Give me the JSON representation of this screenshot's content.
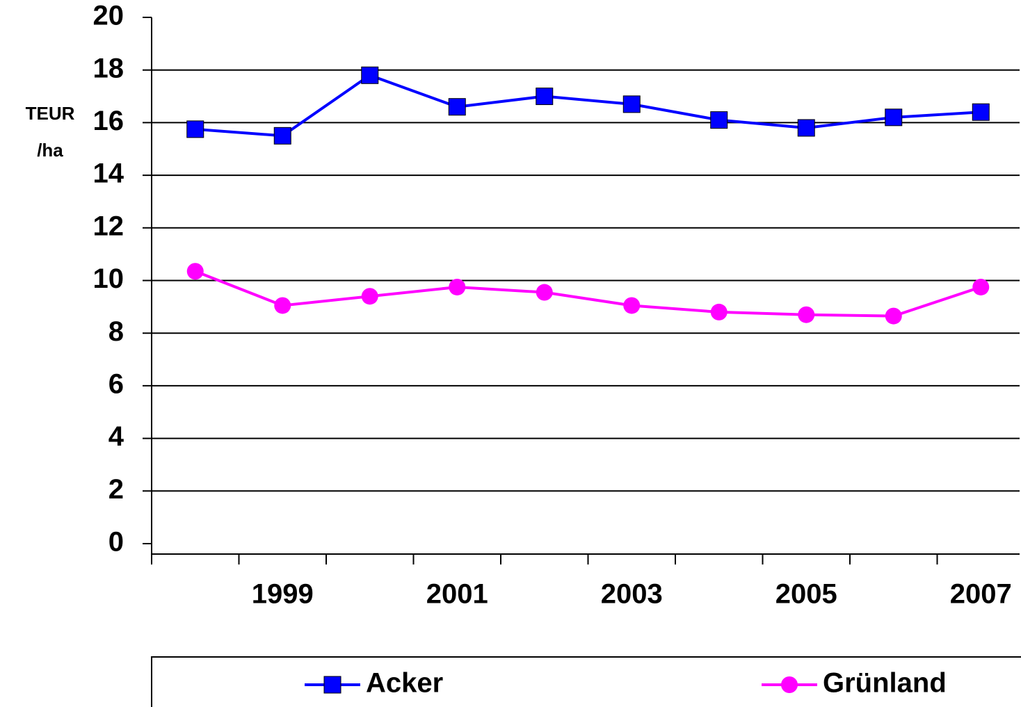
{
  "chart_data": {
    "type": "line",
    "y_label": [
      "TEUR",
      "/ha"
    ],
    "categories": [
      null,
      "1999",
      null,
      "2001",
      null,
      "2003",
      null,
      "2005",
      null,
      "2007"
    ],
    "series": [
      {
        "name": "Acker",
        "color": "#0000ff",
        "marker": "square",
        "values": [
          15.75,
          15.5,
          17.8,
          16.6,
          17.0,
          16.7,
          16.1,
          15.8,
          16.2,
          16.4
        ]
      },
      {
        "name": "Grünland",
        "color": "#ff00ff",
        "marker": "circle",
        "values": [
          10.35,
          9.05,
          9.4,
          9.75,
          9.55,
          9.05,
          8.8,
          8.7,
          8.65,
          9.75
        ]
      }
    ],
    "ylim": [
      0,
      20
    ],
    "yticks": [
      0,
      2,
      4,
      6,
      8,
      10,
      12,
      14,
      16,
      18,
      20
    ],
    "grid": true,
    "legend": "bottom"
  }
}
